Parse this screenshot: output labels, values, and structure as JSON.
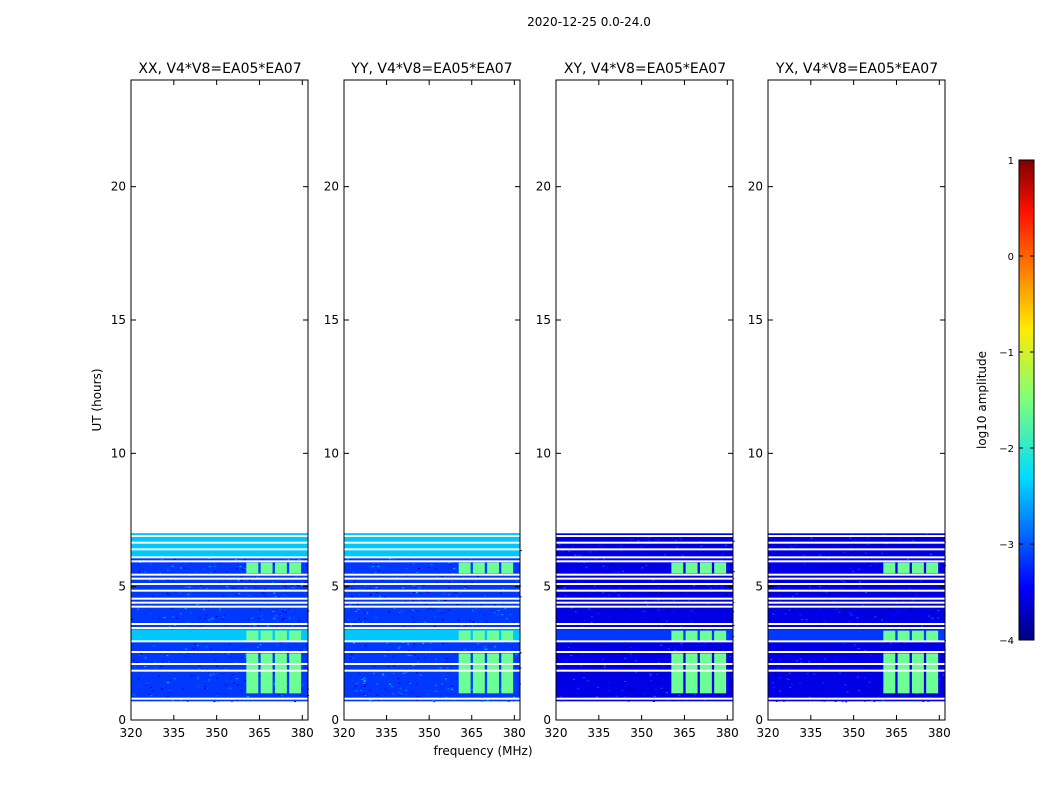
{
  "figure": {
    "suptitle": "2020-12-25 0.0-24.0",
    "ylabel": "UT (hours)",
    "xlabel": "frequency (MHz)"
  },
  "chart_data": {
    "type": "heatmap",
    "title": "2020-12-25 0.0-24.0",
    "xlabel": "frequency (MHz)",
    "ylabel": "UT (hours)",
    "xlim": [
      320,
      382
    ],
    "ylim": [
      0,
      24
    ],
    "xticks": [
      320,
      335,
      350,
      365,
      380
    ],
    "yticks": [
      0,
      5,
      10,
      15,
      20
    ],
    "data_extent_hours": [
      0.7,
      7.0
    ],
    "panels": [
      {
        "name": "XX",
        "title": "XX, V4*V8=EA05*EA07",
        "base_level": -3.1
      },
      {
        "name": "YY",
        "title": "YY, V4*V8=EA05*EA07",
        "base_level": -3.1
      },
      {
        "name": "XY",
        "title": "XY, V4*V8=EA05*EA07",
        "base_level": -3.5
      },
      {
        "name": "YX",
        "title": "YX, V4*V8=EA05*EA07",
        "base_level": -3.5
      }
    ],
    "rfi_band_mhz": [
      360,
      380
    ],
    "rfi_level": -1.6,
    "gap_rows_hours": [
      0.8,
      1.85,
      2.1,
      2.55,
      2.95,
      3.45,
      3.6,
      4.25,
      4.4,
      4.55,
      4.85,
      5.1,
      5.3,
      5.45,
      5.95,
      6.1,
      6.4,
      6.65,
      6.9
    ],
    "colorbar": {
      "label": "log10 amplitude",
      "range": [
        -4,
        1
      ],
      "ticks": [
        1,
        0,
        -1,
        -2,
        -3,
        -4
      ],
      "tick_labels": [
        "1",
        "0",
        "−1",
        "−2",
        "−3",
        "−4"
      ],
      "colormap": "jet"
    }
  }
}
